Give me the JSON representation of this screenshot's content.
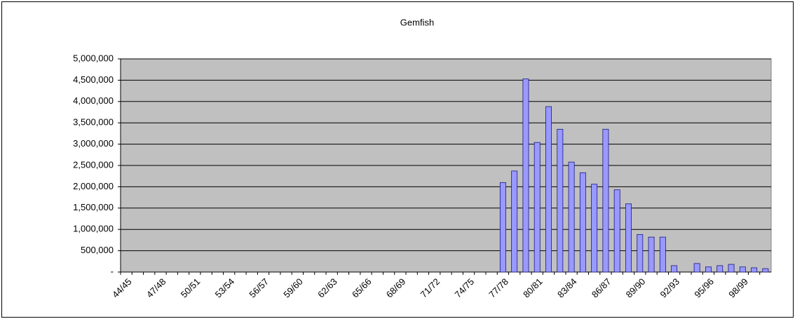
{
  "chart_data": {
    "type": "bar",
    "title": "Gemfish",
    "categories": [
      "44/45",
      null,
      null,
      "47/48",
      null,
      null,
      "50/51",
      null,
      null,
      "53/54",
      null,
      null,
      "56/57",
      null,
      null,
      "59/60",
      null,
      null,
      "62/63",
      null,
      null,
      "65/66",
      null,
      null,
      "68/69",
      null,
      null,
      "71/72",
      null,
      null,
      "74/75",
      null,
      null,
      "77/78",
      null,
      null,
      "80/81",
      null,
      null,
      "83/84",
      null,
      null,
      "86/87",
      null,
      null,
      "89/90",
      null,
      null,
      "92/93",
      null,
      null,
      "95/96",
      null,
      null,
      "98/99",
      null,
      null
    ],
    "values": [
      null,
      null,
      null,
      null,
      null,
      null,
      null,
      null,
      null,
      null,
      null,
      null,
      null,
      null,
      null,
      null,
      null,
      null,
      null,
      null,
      null,
      null,
      null,
      null,
      null,
      null,
      null,
      null,
      null,
      null,
      null,
      null,
      null,
      2100000,
      2370000,
      4530000,
      3040000,
      3880000,
      3350000,
      2580000,
      2330000,
      2060000,
      3350000,
      1930000,
      1600000,
      880000,
      820000,
      820000,
      150000,
      null,
      200000,
      120000,
      150000,
      180000,
      120000,
      100000,
      80000
    ],
    "color": "#9999ff",
    "ylim": [
      0,
      5000000
    ],
    "yticks": [
      {
        "value": 0,
        "label": "-"
      },
      {
        "value": 500000,
        "label": "500,000"
      },
      {
        "value": 1000000,
        "label": "1,000,000"
      },
      {
        "value": 1500000,
        "label": "1,500,000"
      },
      {
        "value": 2000000,
        "label": "2,000,000"
      },
      {
        "value": 2500000,
        "label": "2,500,000"
      },
      {
        "value": 3000000,
        "label": "3,000,000"
      },
      {
        "value": 3500000,
        "label": "3,500,000"
      },
      {
        "value": 4000000,
        "label": "4,000,000"
      },
      {
        "value": 4500000,
        "label": "4,500,000"
      },
      {
        "value": 5000000,
        "label": "5,000,000"
      }
    ],
    "grid": true
  }
}
